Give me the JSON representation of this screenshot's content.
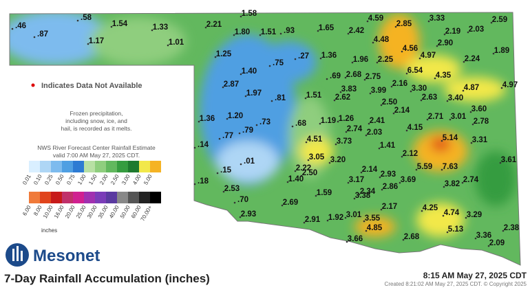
{
  "map": {
    "title": "7-Day Rainfall Accumulation (inches)",
    "brand": "Mesonet",
    "timestamp": "8:15 AM May 27, 2025 CDT",
    "created": "Created 8:21:02 AM May 27, 2025 CDT. © Copyright 2025",
    "missing_note": "Indicates Data Not Available",
    "frozen_note": [
      "Frozen precipitation,",
      "including snow, ice, and",
      "hail, is recorded as it melts."
    ],
    "nws_note": [
      "NWS River Forecast Center Rainfall Estimate",
      "valid 7:00 AM May 27, 2025 CDT."
    ],
    "legend_unit": "inches",
    "legend": [
      [
        {
          "label": "0.01",
          "color": "#d9efff"
        },
        {
          "label": "0.10",
          "color": "#aed6f5"
        },
        {
          "label": "0.25",
          "color": "#7dbbee"
        },
        {
          "label": "0.50",
          "color": "#4f9fe2"
        },
        {
          "label": "0.75",
          "color": "#2d7bd3"
        },
        {
          "label": "1.00",
          "color": "#b8e0a4"
        },
        {
          "label": "1.50",
          "color": "#8fce7e"
        },
        {
          "label": "2.00",
          "color": "#62b85e"
        },
        {
          "label": "2.50",
          "color": "#359c3f"
        },
        {
          "label": "3.00",
          "color": "#1e7a2e"
        },
        {
          "label": "4.00",
          "color": "#f2e84a"
        },
        {
          "label": "5.00",
          "color": "#f5b324"
        }
      ],
      [
        {
          "label": "6.00",
          "color": "#f07a3a"
        },
        {
          "label": "8.00",
          "color": "#e0441c"
        },
        {
          "label": "10.00",
          "color": "#c71a1a"
        },
        {
          "label": "16.00",
          "color": "#c0306a"
        },
        {
          "label": "20.00",
          "color": "#d02090"
        },
        {
          "label": "25.00",
          "color": "#a030b0"
        },
        {
          "label": "30.00",
          "color": "#7a3cb8"
        },
        {
          "label": "35.00",
          "color": "#5a3aa0"
        },
        {
          "label": "40.00",
          "color": "#888888"
        },
        {
          "label": "50.00",
          "color": "#555555"
        },
        {
          "label": "60.00",
          "color": "#222222"
        },
        {
          "label": "70.00+",
          "color": "#000000"
        }
      ]
    ],
    "stations": [
      ".46",
      ".87",
      ".58",
      "1.54",
      "1.17",
      "1.33",
      "1.01",
      "1.58",
      "2.21",
      "1.80",
      "1.51",
      ".93",
      "1.65",
      "2.42",
      "4.59",
      "2.85",
      "3.33",
      "2.59",
      "4.48",
      "2.19",
      "2.03",
      "2.90",
      "4.56",
      "4.97",
      "2.24",
      "1.89",
      "1.25",
      ".75",
      ".27",
      "1.36",
      "1.96",
      "2.25",
      "1.40",
      ".69",
      "2.68",
      "2.75",
      "6.54",
      "4.35",
      "2.87",
      "1.97",
      "3.83",
      "3.99",
      "2.16",
      "3.30",
      "4.87",
      "4.97",
      ".81",
      "1.51",
      "2.62",
      "2.50",
      "2.63",
      "3.40",
      "3.60",
      "1.20",
      "1.36",
      ".73",
      ".68",
      "1.19",
      "1.26",
      "2.41",
      "2.14",
      "4.15",
      "2.71",
      "3.01",
      "2.78",
      ".77",
      ".79",
      "2.74",
      "2.03",
      "5.14",
      "3.31",
      ".14",
      "4.51",
      "3.73",
      "1.41",
      "2.12",
      ".01",
      "3.05",
      "3.20",
      "3.61",
      "2.22",
      "2.14",
      "2.93",
      "5.59",
      "7.63",
      ".15",
      "2.50",
      "1.40",
      "3.17",
      "3.69",
      "3.82",
      "2.74",
      ".18",
      "2.53",
      "1.59",
      "2.86",
      "2.34",
      "3.38",
      ".70",
      "2.69",
      "2.17",
      "4.25",
      "4.74",
      "3.29",
      "2.93",
      "2.91",
      "1.92",
      "3.01",
      "3.55",
      "4.85",
      "5.13",
      "2.38",
      "3.66",
      "2.68",
      "3.36",
      "2.09"
    ]
  }
}
